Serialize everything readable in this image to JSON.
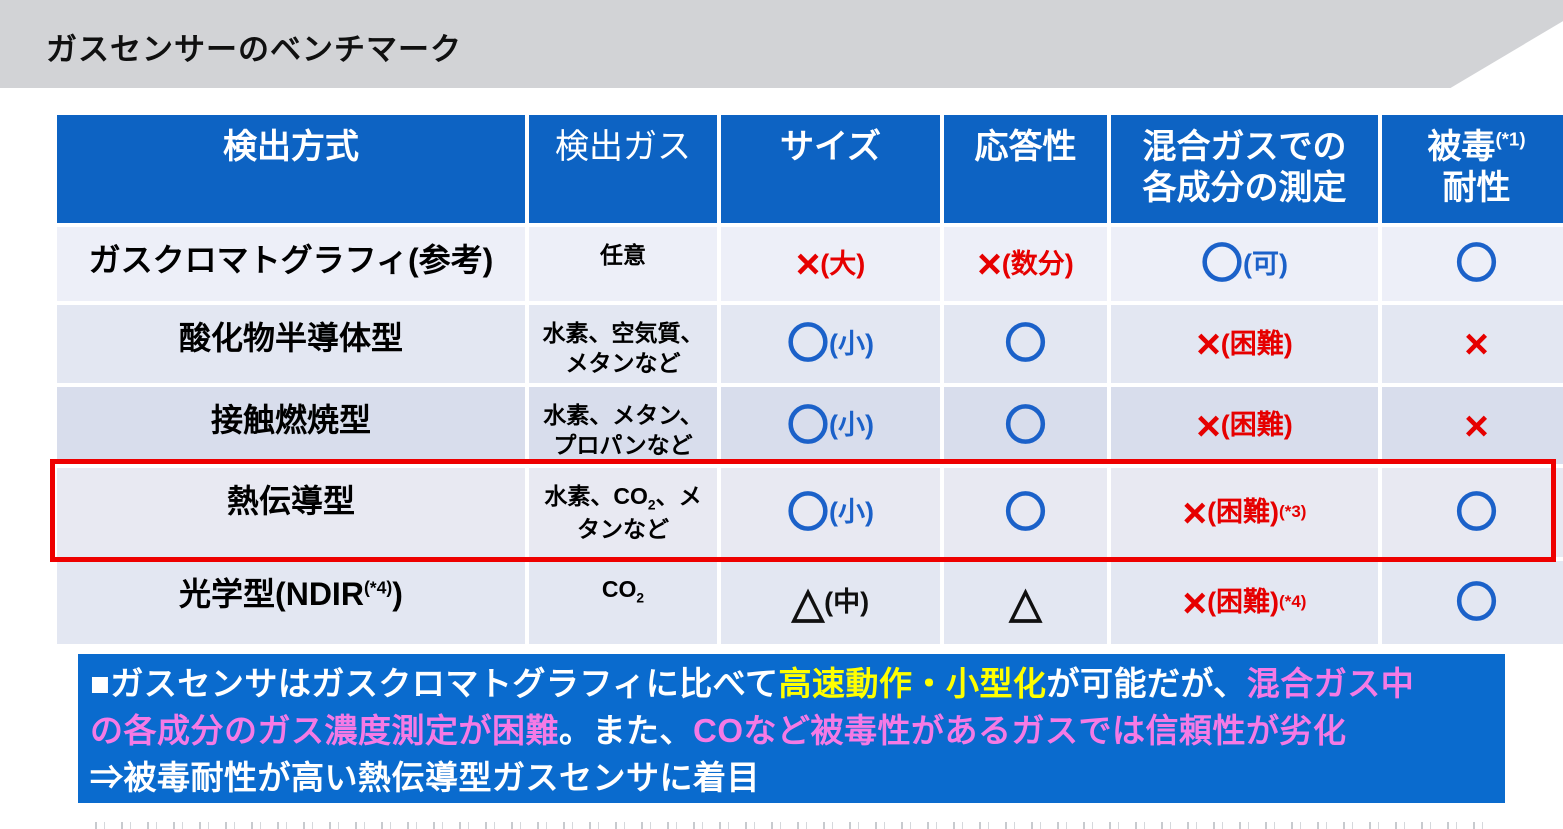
{
  "title": "ガスセンサーのベンチマーク",
  "colors": {
    "header_bg": "#0d63c3",
    "summary_bg": "#0a6bce",
    "highlight_border": "#ee0000",
    "mark_red": "#e60000",
    "mark_blue": "#1b61c9",
    "text_yellow": "#ffff00",
    "text_pink": "#f57ae5",
    "text_white": "#ffffff"
  },
  "table": {
    "headers": [
      {
        "key": "method",
        "bold": true,
        "segs": [
          {
            "t": "検出方式"
          }
        ]
      },
      {
        "key": "gas",
        "bold": false,
        "segs": [
          {
            "t": "検出ガス"
          }
        ]
      },
      {
        "key": "size",
        "bold": true,
        "segs": [
          {
            "t": "サイズ"
          }
        ]
      },
      {
        "key": "response",
        "bold": true,
        "segs": [
          {
            "t": "応答性"
          }
        ]
      },
      {
        "key": "mixed",
        "bold": true,
        "segs": [
          {
            "t": "混合ガスでの"
          },
          {
            "br": true
          },
          {
            "t": "各成分の測定"
          }
        ]
      },
      {
        "key": "poison",
        "bold": true,
        "segs": [
          {
            "t": "被毒"
          },
          {
            "t": "(*1)",
            "sup": true
          },
          {
            "br": true
          },
          {
            "t": "耐性"
          }
        ]
      }
    ],
    "rows": [
      {
        "band": "#edeff8",
        "highlight": false,
        "method": [
          {
            "t": "ガスクロマトグラフィ(参考)"
          }
        ],
        "gas": [
          {
            "t": "任意"
          }
        ],
        "size": {
          "symbol": "×",
          "note": "(大)",
          "sup": "",
          "style": "red"
        },
        "response": {
          "symbol": "×",
          "note": "(数分)",
          "sup": "",
          "style": "red"
        },
        "mixed": {
          "symbol": "〇",
          "note": "(可)",
          "sup": "",
          "style": "blue"
        },
        "poison": {
          "symbol": "〇",
          "note": "",
          "sup": "",
          "style": "blue"
        }
      },
      {
        "band": "#e3e7f2",
        "highlight": false,
        "method": [
          {
            "t": "酸化物半導体型"
          }
        ],
        "gas": [
          {
            "t": "水素、空気質、"
          },
          {
            "br": true
          },
          {
            "t": "メタンなど"
          }
        ],
        "size": {
          "symbol": "〇",
          "note": "(小)",
          "sup": "",
          "style": "blue"
        },
        "response": {
          "symbol": "〇",
          "note": "",
          "sup": "",
          "style": "blue"
        },
        "mixed": {
          "symbol": "×",
          "note": "(困難)",
          "sup": "",
          "style": "red"
        },
        "poison": {
          "symbol": "×",
          "note": "",
          "sup": "",
          "style": "red"
        }
      },
      {
        "band": "#d8ddec",
        "highlight": false,
        "method": [
          {
            "t": "接触燃焼型"
          }
        ],
        "gas": [
          {
            "t": "水素、メタン、"
          },
          {
            "br": true
          },
          {
            "t": "プロパンなど"
          }
        ],
        "size": {
          "symbol": "〇",
          "note": "(小)",
          "sup": "",
          "style": "blue"
        },
        "response": {
          "symbol": "〇",
          "note": "",
          "sup": "",
          "style": "blue"
        },
        "mixed": {
          "symbol": "×",
          "note": "(困難)",
          "sup": "",
          "style": "red"
        },
        "poison": {
          "symbol": "×",
          "note": "",
          "sup": "",
          "style": "red"
        }
      },
      {
        "band": "#e8e9f2",
        "highlight": true,
        "method": [
          {
            "t": "熱伝導型"
          }
        ],
        "gas": [
          {
            "t": "水素、CO"
          },
          {
            "t": "2",
            "sub": true
          },
          {
            "t": "、メ"
          },
          {
            "br": true
          },
          {
            "t": "タンなど"
          }
        ],
        "size": {
          "symbol": "〇",
          "note": "(小)",
          "sup": "",
          "style": "blue"
        },
        "response": {
          "symbol": "〇",
          "note": "",
          "sup": "",
          "style": "blue"
        },
        "mixed": {
          "symbol": "×",
          "note": "(困難)",
          "sup": "(*3)",
          "style": "red"
        },
        "poison": {
          "symbol": "〇",
          "note": "",
          "sup": "",
          "style": "blue"
        }
      },
      {
        "band": "#e3e7f2",
        "highlight": false,
        "method": [
          {
            "t": "光学型(NDIR"
          },
          {
            "t": "(*4)",
            "sup": true
          },
          {
            "t": ")"
          }
        ],
        "gas": [
          {
            "t": "CO"
          },
          {
            "t": "2",
            "sub": true
          }
        ],
        "size": {
          "symbol": "△",
          "note": "(中)",
          "sup": "",
          "style": "black"
        },
        "response": {
          "symbol": "△",
          "note": "",
          "sup": "",
          "style": "black"
        },
        "mixed": {
          "symbol": "×",
          "note": "(困難)",
          "sup": "(*4)",
          "style": "red"
        },
        "poison": {
          "symbol": "〇",
          "note": "",
          "sup": "",
          "style": "blue"
        }
      }
    ]
  },
  "summary": {
    "lines": [
      [
        {
          "t": "■ガスセンサはガスクロマトグラフィに比べて",
          "c": "white"
        },
        {
          "t": "高速動作・小型化",
          "c": "yellow"
        },
        {
          "t": "が可能だが、",
          "c": "white"
        },
        {
          "t": "混合ガス中",
          "c": "pink"
        }
      ],
      [
        {
          "t": "の各成分のガス濃度測定が困難",
          "c": "pink"
        },
        {
          "t": "。また、",
          "c": "white"
        },
        {
          "t": "COなど被毒性があるガスでは信頼性が劣化",
          "c": "pink"
        }
      ],
      [
        {
          "t": "⇒被毒耐性が高い熱伝導型ガスセンサに着目",
          "c": "white"
        }
      ]
    ]
  }
}
